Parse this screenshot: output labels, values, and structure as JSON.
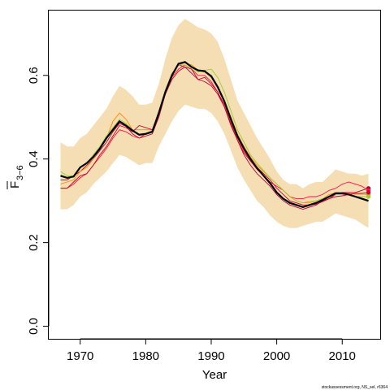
{
  "chart_data": {
    "type": "line",
    "xlabel": "Year",
    "ylabel_main": "F",
    "ylabel_sub": "3−6",
    "xlim": [
      1965.2,
      2015.8
    ],
    "ylim": [
      -0.03,
      0.755
    ],
    "xticks": [
      "1970",
      "1980",
      "1990",
      "2000",
      "2010"
    ],
    "yticks": [
      "0.0",
      "0.2",
      "0.4",
      "0.6"
    ],
    "footer": "stockassessment.org, NS_sel, r6364",
    "colors": {
      "band": "#f5deb3",
      "main": "#000000",
      "peels": [
        "#b0003a",
        "#ff1040",
        "#ff8a00",
        "#9acd32",
        "#cc0033"
      ]
    },
    "x": [
      1967,
      1968,
      1969,
      1970,
      1971,
      1972,
      1973,
      1974,
      1975,
      1976,
      1977,
      1978,
      1979,
      1980,
      1981,
      1982,
      1983,
      1984,
      1985,
      1986,
      1987,
      1988,
      1989,
      1990,
      1991,
      1992,
      1993,
      1994,
      1995,
      1996,
      1997,
      1998,
      1999,
      2000,
      2001,
      2002,
      2003,
      2004,
      2005,
      2006,
      2007,
      2008,
      2009,
      2010,
      2011,
      2012,
      2013,
      2014
    ],
    "band_upper": [
      0.44,
      0.43,
      0.43,
      0.45,
      0.46,
      0.48,
      0.5,
      0.52,
      0.55,
      0.575,
      0.565,
      0.55,
      0.53,
      0.53,
      0.535,
      0.58,
      0.64,
      0.69,
      0.72,
      0.735,
      0.725,
      0.715,
      0.71,
      0.7,
      0.68,
      0.64,
      0.59,
      0.54,
      0.51,
      0.48,
      0.45,
      0.425,
      0.4,
      0.37,
      0.35,
      0.34,
      0.34,
      0.33,
      0.34,
      0.345,
      0.345,
      0.36,
      0.375,
      0.37,
      0.365,
      0.365,
      0.36,
      0.365
    ],
    "band_lower": [
      0.28,
      0.28,
      0.29,
      0.31,
      0.32,
      0.34,
      0.355,
      0.37,
      0.39,
      0.41,
      0.405,
      0.395,
      0.385,
      0.39,
      0.39,
      0.43,
      0.46,
      0.49,
      0.515,
      0.53,
      0.525,
      0.52,
      0.52,
      0.51,
      0.49,
      0.46,
      0.42,
      0.38,
      0.35,
      0.325,
      0.3,
      0.285,
      0.265,
      0.25,
      0.24,
      0.235,
      0.235,
      0.24,
      0.245,
      0.25,
      0.25,
      0.26,
      0.27,
      0.265,
      0.26,
      0.255,
      0.245,
      0.235
    ],
    "series": [
      {
        "values": [
          0.36,
          0.355,
          0.358,
          0.38,
          0.39,
          0.405,
          0.425,
          0.45,
          0.47,
          0.49,
          0.48,
          0.468,
          0.458,
          0.46,
          0.465,
          0.51,
          0.56,
          0.6,
          0.628,
          0.632,
          0.62,
          0.612,
          0.61,
          0.598,
          0.572,
          0.538,
          0.495,
          0.455,
          0.425,
          0.4,
          0.378,
          0.36,
          0.342,
          0.32,
          0.305,
          0.295,
          0.29,
          0.285,
          0.29,
          0.295,
          0.302,
          0.31,
          0.318,
          0.318,
          0.315,
          0.31,
          0.305,
          0.3
        ]
      },
      {
        "values": [
          0.35,
          0.35,
          0.36,
          0.37,
          0.385,
          0.4,
          0.42,
          0.44,
          0.465,
          0.485,
          0.478,
          0.46,
          0.45,
          0.455,
          0.46,
          0.5,
          0.555,
          0.6,
          0.625,
          0.62,
          0.605,
          0.59,
          0.585,
          0.575,
          0.555,
          0.525,
          0.48,
          0.445,
          0.41,
          0.385,
          0.365,
          0.35,
          0.335,
          0.315,
          0.3,
          0.29,
          0.285,
          0.28,
          0.285,
          0.29,
          0.3,
          0.305,
          0.315,
          0.32,
          0.32,
          0.32,
          0.325,
          0.33
        ]
      },
      {
        "values": [
          0.33,
          0.33,
          0.34,
          0.355,
          0.365,
          0.385,
          0.405,
          0.425,
          0.45,
          0.47,
          0.465,
          0.455,
          0.45,
          0.46,
          0.465,
          0.505,
          0.555,
          0.595,
          0.615,
          0.625,
          0.615,
          0.6,
          0.6,
          0.585,
          0.56,
          0.53,
          0.49,
          0.45,
          0.42,
          0.395,
          0.375,
          0.36,
          0.345,
          0.335,
          0.325,
          0.31,
          0.305,
          0.305,
          0.31,
          0.31,
          0.315,
          0.325,
          0.33,
          0.34,
          0.345,
          0.34,
          0.335,
          0.325
        ]
      },
      {
        "values": [
          0.34,
          0.345,
          0.35,
          0.37,
          0.38,
          0.4,
          0.425,
          0.45,
          0.49,
          0.51,
          0.495,
          0.47,
          0.47,
          0.47,
          0.47,
          0.515,
          0.565,
          0.605,
          0.625,
          0.63,
          0.625,
          0.612,
          0.608,
          0.595,
          0.57,
          0.54,
          0.5,
          0.46,
          0.43,
          0.405,
          0.385,
          0.37,
          0.355,
          0.34,
          0.325,
          0.31,
          0.3,
          0.295,
          0.298,
          0.3,
          0.305,
          0.315,
          0.32,
          0.318,
          0.318,
          0.316,
          0.316,
          0.315
        ]
      },
      {
        "values": [
          0.37,
          0.36,
          0.36,
          0.38,
          0.39,
          0.41,
          0.43,
          0.455,
          0.475,
          0.495,
          0.485,
          0.47,
          0.46,
          0.462,
          0.468,
          0.515,
          0.565,
          0.605,
          0.625,
          0.625,
          0.615,
          0.608,
          0.612,
          0.615,
          0.595,
          0.56,
          0.515,
          0.47,
          0.44,
          0.41,
          0.39,
          0.372,
          0.355,
          0.34,
          0.325,
          0.31,
          0.3,
          0.295,
          0.295,
          0.3,
          0.305,
          0.31,
          0.315,
          0.315,
          0.315,
          0.31,
          0.31,
          0.31
        ]
      },
      {
        "values": [
          0.33,
          0.33,
          0.345,
          0.36,
          0.365,
          0.385,
          0.41,
          0.43,
          0.455,
          0.48,
          0.475,
          0.465,
          0.48,
          0.475,
          0.47,
          0.51,
          0.555,
          0.59,
          0.61,
          0.62,
          0.615,
          0.59,
          0.595,
          0.58,
          0.56,
          0.525,
          0.485,
          0.445,
          0.415,
          0.395,
          0.38,
          0.365,
          0.35,
          0.33,
          0.315,
          0.3,
          0.295,
          0.29,
          0.29,
          0.292,
          0.298,
          0.305,
          0.31,
          0.312,
          0.315,
          0.318,
          0.318,
          0.32
        ]
      }
    ]
  }
}
